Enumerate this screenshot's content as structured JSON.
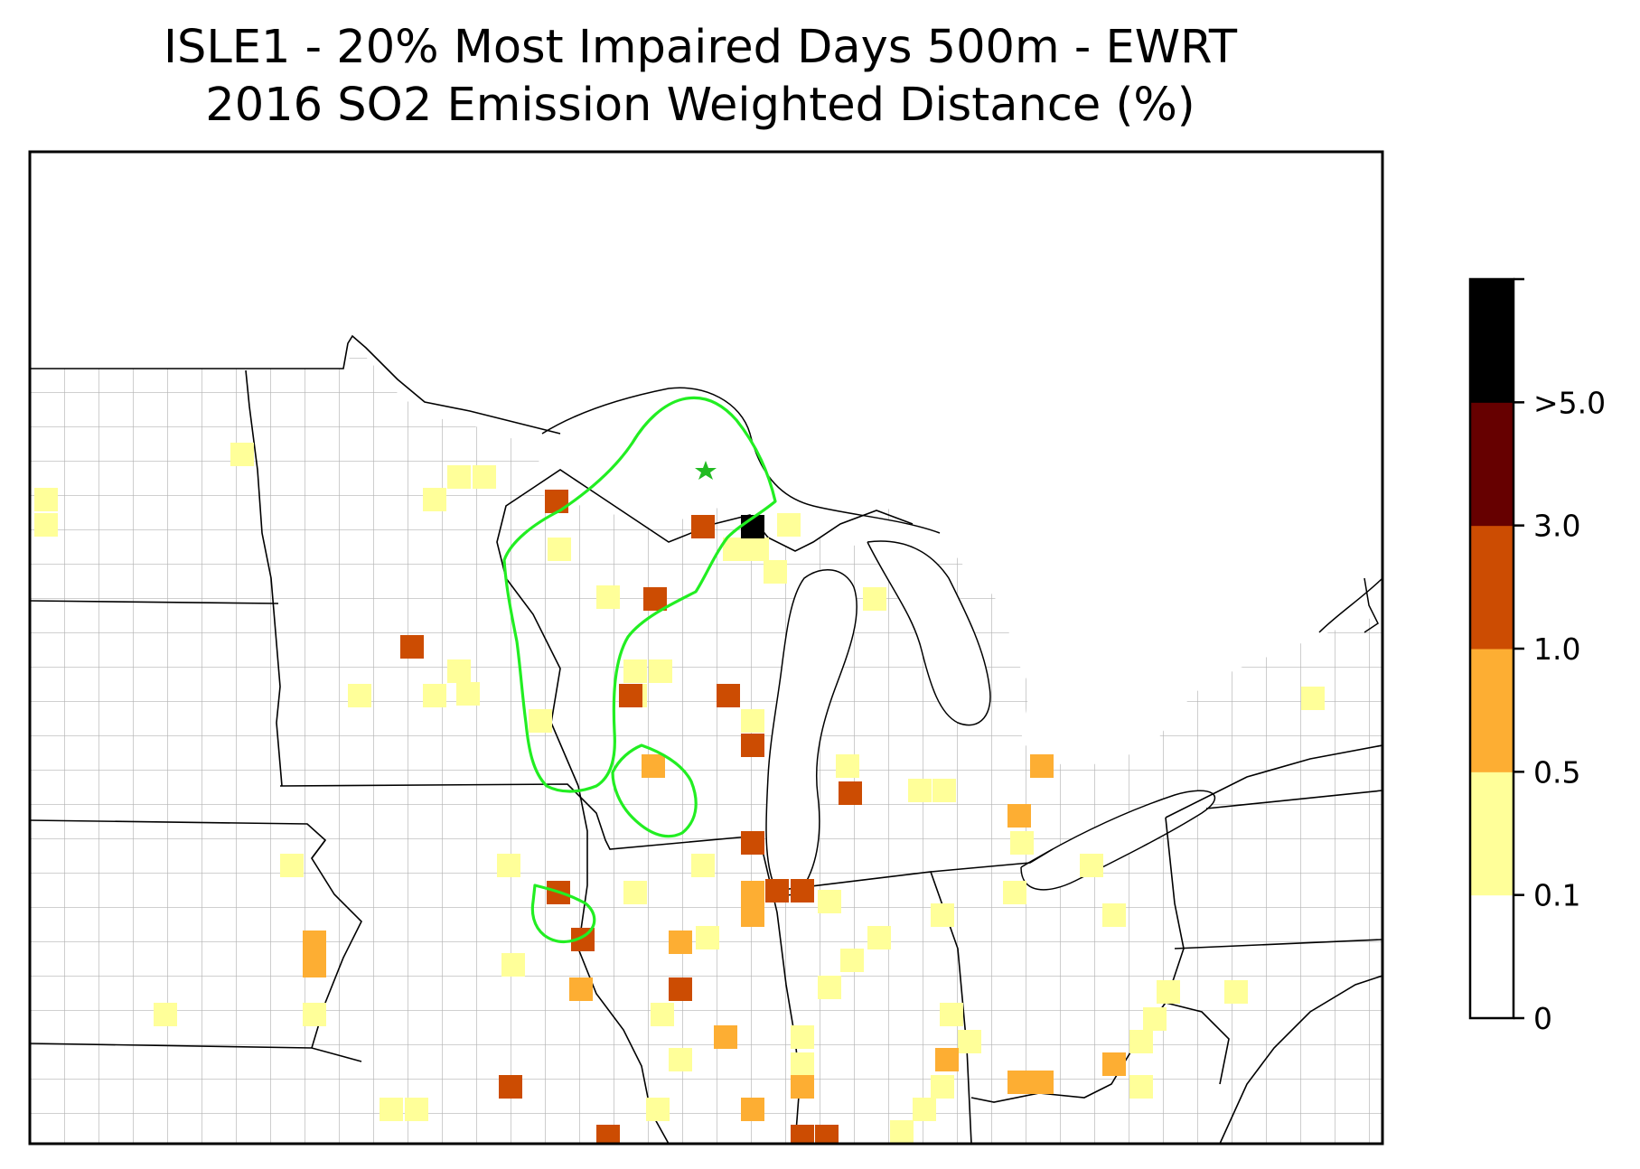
{
  "title": {
    "line1": "ISLE1 - 20% Most Impaired Days 500m - EWRT",
    "line2": "2016 SO2 Emission Weighted Distance (%)"
  },
  "colorbar": {
    "labels": [
      "0",
      "0.1",
      "0.5",
      "1.0",
      "3.0",
      ">5.0"
    ],
    "colors": [
      "#ffffff",
      "#ffff99",
      "#fdae33",
      "#cc4c02",
      "#660000",
      "#000000"
    ]
  },
  "colors": {
    "county_lines": "#9a9a9a",
    "state_lines": "#000000",
    "trajectory_contour": "#22ee22",
    "site_marker": "#22bb22"
  },
  "site_marker": {
    "icon": "star-icon"
  }
}
